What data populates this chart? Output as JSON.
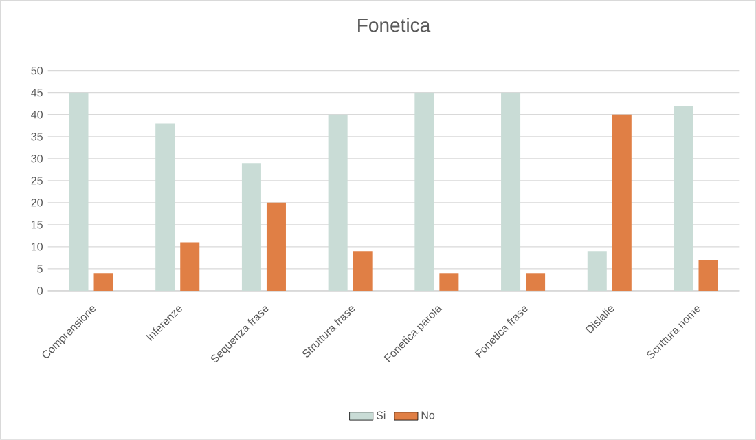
{
  "chart_data": {
    "type": "bar",
    "title": "Fonetica",
    "categories": [
      "Comprensione",
      "Inferenze",
      "Sequenza frase",
      "Struttura frase",
      "Fonetica parola",
      "Fonetica frase",
      "Dislalie",
      "Scrittura nome"
    ],
    "series": [
      {
        "name": "Si",
        "color": "#c9dcd6",
        "values": [
          45,
          38,
          29,
          40,
          45,
          45,
          9,
          42
        ]
      },
      {
        "name": "No",
        "color": "#e07f45",
        "values": [
          4,
          11,
          20,
          9,
          4,
          4,
          40,
          7
        ]
      }
    ],
    "ylim": [
      0,
      50
    ],
    "yticks": [
      0,
      5,
      10,
      15,
      20,
      25,
      30,
      35,
      40,
      45,
      50
    ],
    "grid": "y",
    "legend": "bottom"
  }
}
